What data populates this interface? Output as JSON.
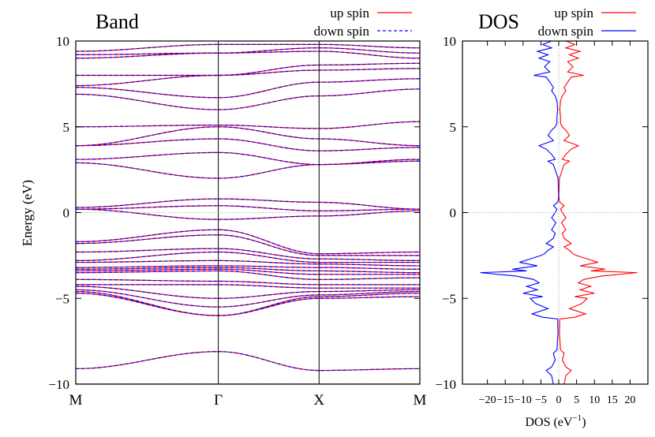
{
  "chart_data": [
    {
      "type": "line",
      "title": "Band",
      "xlabel": "",
      "ylabel": "Energy (eV)",
      "ylim": [
        -10,
        10
      ],
      "yticks": [
        -10,
        -5,
        0,
        5,
        10
      ],
      "x_ticks": [
        {
          "label": "M",
          "pos": 0.0
        },
        {
          "label": "Γ",
          "pos": 1.0
        },
        {
          "label": "X",
          "pos": 1.7071
        },
        {
          "label": "M",
          "pos": 2.4142
        }
      ],
      "legend_position": "top-right",
      "series": [
        {
          "name": "up spin",
          "color": "#ff0000",
          "style": "solid"
        },
        {
          "name": "down spin",
          "color": "#0000ff",
          "style": "dashed"
        }
      ],
      "bands": [
        [
          -9.1,
          -8.1,
          -9.2,
          -9.1
        ],
        [
          -10.0,
          -10.0,
          -10.0,
          -10.0
        ],
        [
          -4.7,
          -6.0,
          -5.0,
          -4.9
        ],
        [
          -4.6,
          -6.0,
          -4.9,
          -4.7
        ],
        [
          -4.5,
          -5.5,
          -4.8,
          -4.6
        ],
        [
          -4.3,
          -5.0,
          -4.6,
          -4.5
        ],
        [
          -4.2,
          -4.2,
          -4.4,
          -4.4
        ],
        [
          -3.9,
          -4.0,
          -4.2,
          -4.2
        ],
        [
          -3.5,
          -3.4,
          -3.9,
          -3.8
        ],
        [
          -3.4,
          -3.3,
          -3.6,
          -3.6
        ],
        [
          -3.3,
          -3.2,
          -3.4,
          -3.5
        ],
        [
          -3.2,
          -3.1,
          -3.2,
          -3.3
        ],
        [
          -2.9,
          -2.8,
          -3.0,
          -3.1
        ],
        [
          -2.8,
          -2.3,
          -2.9,
          -2.9
        ],
        [
          -2.3,
          -2.1,
          -2.7,
          -2.8
        ],
        [
          -1.8,
          -1.3,
          -2.5,
          -2.5
        ],
        [
          -1.7,
          -1.0,
          -2.4,
          -2.3
        ],
        [
          0.2,
          -0.4,
          -0.2,
          0.1
        ],
        [
          0.2,
          0.4,
          0.1,
          0.2
        ],
        [
          0.3,
          0.8,
          0.6,
          0.2
        ],
        [
          2.9,
          2.0,
          2.8,
          3.0
        ],
        [
          3.1,
          3.5,
          2.8,
          3.1
        ],
        [
          3.9,
          4.3,
          3.6,
          3.8
        ],
        [
          3.9,
          5.0,
          4.3,
          3.9
        ],
        [
          5.0,
          5.1,
          4.9,
          5.3
        ],
        [
          6.9,
          6.0,
          6.8,
          7.2
        ],
        [
          7.3,
          6.7,
          7.6,
          7.8
        ],
        [
          7.4,
          8.0,
          8.3,
          8.4
        ],
        [
          8.0,
          8.0,
          8.6,
          8.7
        ],
        [
          9.0,
          9.3,
          9.4,
          9.0
        ],
        [
          9.2,
          9.3,
          9.6,
          9.3
        ],
        [
          9.4,
          9.8,
          9.8,
          9.6
        ]
      ]
    },
    {
      "type": "line",
      "title": "DOS",
      "xlabel": "DOS (eV⁻¹)",
      "ylabel": "",
      "xlim": [
        -27,
        25
      ],
      "ylim": [
        -10,
        10
      ],
      "xticks": [
        -20,
        -15,
        -10,
        -5,
        0,
        5,
        10,
        15,
        20
      ],
      "xtick_labels": [
        "−20",
        "−15",
        "−10",
        "−5",
        "0",
        "5",
        "10",
        "15",
        "20"
      ],
      "yticks": [
        -10,
        -5,
        0,
        5,
        10
      ],
      "legend_position": "top-right",
      "series": [
        {
          "name": "up spin",
          "color": "#ff0000",
          "sign": 1
        },
        {
          "name": "down spin",
          "color": "#0000ff",
          "sign": -1
        }
      ],
      "energy": [
        -10.0,
        -9.5,
        -9.2,
        -9.0,
        -8.6,
        -8.2,
        -8.0,
        -7.0,
        -6.2,
        -6.1,
        -5.9,
        -5.6,
        -5.3,
        -5.0,
        -4.9,
        -4.7,
        -4.5,
        -4.3,
        -4.1,
        -3.9,
        -3.7,
        -3.5,
        -3.4,
        -3.3,
        -3.1,
        -2.9,
        -2.7,
        -2.5,
        -2.4,
        -2.2,
        -2.0,
        -1.8,
        -1.5,
        -1.2,
        -1.0,
        -0.6,
        -0.3,
        0.0,
        0.2,
        0.4,
        0.6,
        0.8,
        1.0,
        2.0,
        2.8,
        3.0,
        3.1,
        3.4,
        3.7,
        3.9,
        4.2,
        4.5,
        4.8,
        5.0,
        5.2,
        5.6,
        6.0,
        6.5,
        6.8,
        7.1,
        7.3,
        7.6,
        7.9,
        8.0,
        8.2,
        8.5,
        8.8,
        9.0,
        9.2,
        9.4,
        9.6,
        9.8,
        10.0
      ],
      "dos": [
        1.5,
        2.0,
        3.5,
        2.0,
        1.0,
        1.5,
        0.5,
        0.2,
        0.3,
        4.5,
        7.5,
        3.0,
        6.5,
        8.0,
        4.5,
        10.0,
        6.0,
        9.0,
        5.5,
        7.0,
        12.0,
        22.0,
        9.0,
        13.0,
        6.0,
        11.0,
        8.0,
        5.0,
        4.0,
        3.0,
        1.5,
        3.5,
        1.5,
        1.0,
        2.0,
        0.8,
        2.0,
        1.0,
        0.5,
        1.5,
        0.3,
        0.1,
        0.05,
        0.2,
        1.5,
        3.0,
        1.0,
        2.0,
        3.5,
        5.5,
        1.5,
        3.0,
        2.0,
        1.0,
        0.5,
        0.5,
        0.3,
        0.5,
        1.0,
        2.0,
        1.5,
        2.5,
        3.5,
        7.0,
        2.5,
        4.0,
        2.5,
        5.5,
        3.0,
        6.0,
        2.0,
        4.5,
        2.0
      ]
    }
  ]
}
